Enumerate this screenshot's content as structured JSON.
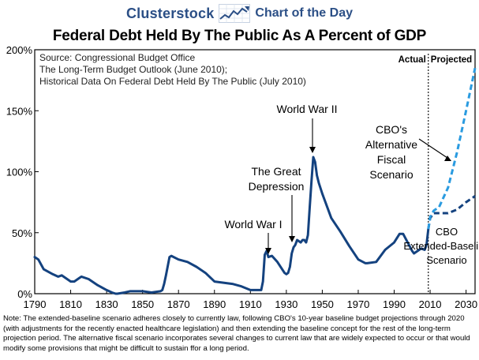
{
  "header": {
    "site_name": "Clusterstock",
    "section": "Chart of the Day",
    "logo_icon": "rising-line-chart-icon",
    "accent_color": "#2b4f86"
  },
  "chart_data": {
    "type": "line",
    "title": "Federal Debt Held By The Public As A Percent of GDP",
    "source_lines": [
      "Source: Congressional Budget Office",
      "The Long-Term Budget Outlook (June 2010);",
      "Historical Data On Federal Debt Held By The Public (July 2010)"
    ],
    "xlabel": "",
    "ylabel": "",
    "xlim": [
      1790,
      2035
    ],
    "ylim": [
      0,
      200
    ],
    "x_ticks": [
      1790,
      1810,
      1830,
      1850,
      1870,
      1890,
      1910,
      1930,
      1950,
      1970,
      1990,
      2010,
      2030
    ],
    "y_ticks": [
      {
        "value": 0,
        "label": "0%"
      },
      {
        "value": 50,
        "label": "50%"
      },
      {
        "value": 100,
        "label": "100%"
      },
      {
        "value": 150,
        "label": "150%"
      },
      {
        "value": 200,
        "label": "200%"
      }
    ],
    "grid": false,
    "divider_year": 2009,
    "region_labels": {
      "actual": "Actual",
      "projected": "Projected"
    },
    "series": [
      {
        "style": "solid",
        "color": "#14427f",
        "x": [
          1790,
          1792,
          1795,
          1800,
          1803,
          1805,
          1810,
          1812,
          1815,
          1816,
          1820,
          1825,
          1830,
          1833,
          1835,
          1836,
          1840,
          1843,
          1845,
          1850,
          1855,
          1860,
          1861,
          1862,
          1863,
          1865,
          1866,
          1870,
          1875,
          1880,
          1885,
          1890,
          1895,
          1900,
          1905,
          1910,
          1915,
          1916,
          1917,
          1918,
          1919,
          1920,
          1922,
          1925,
          1929,
          1930,
          1931,
          1932,
          1933,
          1934,
          1935,
          1936,
          1938,
          1939,
          1940,
          1941,
          1942,
          1943,
          1944,
          1945,
          1946,
          1947,
          1948,
          1950,
          1955,
          1960,
          1965,
          1970,
          1974,
          1975,
          1980,
          1985,
          1990,
          1993,
          1995,
          2000,
          2001,
          2005,
          2007,
          2008,
          2009
        ],
        "y": [
          30,
          28,
          20,
          16,
          14,
          15,
          10,
          10,
          13,
          14,
          12,
          7,
          3,
          1,
          0,
          0,
          1,
          2,
          2,
          2,
          1,
          2,
          3,
          8,
          15,
          30,
          31,
          28,
          26,
          22,
          17,
          10,
          9,
          8,
          6,
          3,
          3,
          3,
          10,
          32,
          35,
          30,
          31,
          26,
          17,
          16,
          17,
          22,
          33,
          38,
          40,
          44,
          42,
          44,
          44,
          42,
          48,
          71,
          92,
          112,
          108,
          97,
          91,
          82,
          62,
          51,
          39,
          28,
          25,
          25,
          26,
          36,
          42,
          49,
          49,
          35,
          33,
          37,
          36,
          40,
          53
        ]
      },
      {
        "style": "dashed",
        "color": "#14427f",
        "name": "CBO Extended-Baseline Scenario",
        "x": [
          2009,
          2010,
          2012,
          2015,
          2020,
          2025,
          2030,
          2035
        ],
        "y": [
          53,
          62,
          66,
          66,
          66,
          69,
          75,
          80
        ]
      },
      {
        "style": "dashed",
        "color": "#2a9be0",
        "name": "CBO's Alternative Fiscal Scenario",
        "x": [
          2009,
          2010,
          2012,
          2015,
          2020,
          2025,
          2030,
          2035
        ],
        "y": [
          53,
          63,
          68,
          71,
          87,
          116,
          150,
          185
        ]
      }
    ],
    "annotations": [
      {
        "text": "World War I"
      },
      {
        "text": "The Great Depression"
      },
      {
        "text": "World War II"
      }
    ]
  },
  "note": "Note: The extended-baseline scenario adheres closely to currently law, following CBO's 10-year baseline budget projections through 2020 (with adjustments for the recently enacted healthcare legislation) and then extending the baseline concept for the rest of the long-term projection period. The alternative fiscal scenario incorporates several changes to current law that are widely expected to occur or that would modify some provisions that might be difficult to sustain ffor a long period."
}
